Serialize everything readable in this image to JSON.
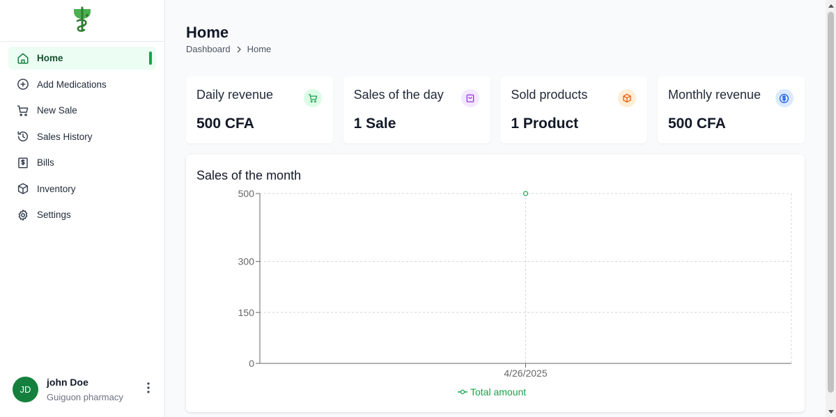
{
  "sidebar": {
    "logo_icon": "caduceus-logo-icon",
    "items": [
      {
        "label": "Home",
        "icon": "home-icon",
        "active": true
      },
      {
        "label": "Add Medications",
        "icon": "plus-circle-icon"
      },
      {
        "label": "New Sale",
        "icon": "cart-icon"
      },
      {
        "label": "Sales History",
        "icon": "history-icon"
      },
      {
        "label": "Bills",
        "icon": "dollar-receipt-icon"
      },
      {
        "label": "Inventory",
        "icon": "box-icon"
      },
      {
        "label": "Settings",
        "icon": "gear-icon"
      }
    ],
    "user": {
      "initials": "JD",
      "name": "john Doe",
      "organization": "Guiguon pharmacy"
    }
  },
  "header": {
    "title": "Home",
    "breadcrumb": [
      "Dashboard",
      "Home"
    ]
  },
  "cards": [
    {
      "title": "Daily revenue",
      "value": "500 CFA",
      "icon": "cart-icon",
      "icon_bg": "#dcfce7",
      "icon_color": "#16a34a"
    },
    {
      "title": "Sales of the day",
      "value": "1 Sale",
      "icon": "shopping-bag-icon",
      "icon_bg": "#f3e8ff",
      "icon_color": "#9333ea"
    },
    {
      "title": "Sold products",
      "value": "1 Product",
      "icon": "box-icon",
      "icon_bg": "#ffedd5",
      "icon_color": "#ea580c"
    },
    {
      "title": "Monthly revenue",
      "value": "500 CFA",
      "icon": "dollar-circle-icon",
      "icon_bg": "#dbeafe",
      "icon_color": "#2563eb"
    }
  ],
  "chart_data": {
    "type": "line",
    "title": "Sales of the month",
    "categories": [
      "4/26/2025"
    ],
    "series": [
      {
        "name": "Total amount",
        "values": [
          500
        ],
        "color": "#16a34a"
      }
    ],
    "yticks": [
      0,
      150,
      300,
      500
    ],
    "ylim": [
      0,
      500
    ],
    "grid": true,
    "legend": "bottom"
  },
  "colors": {
    "accent": "#16a34a",
    "active_bg": "#ecfdf3"
  }
}
